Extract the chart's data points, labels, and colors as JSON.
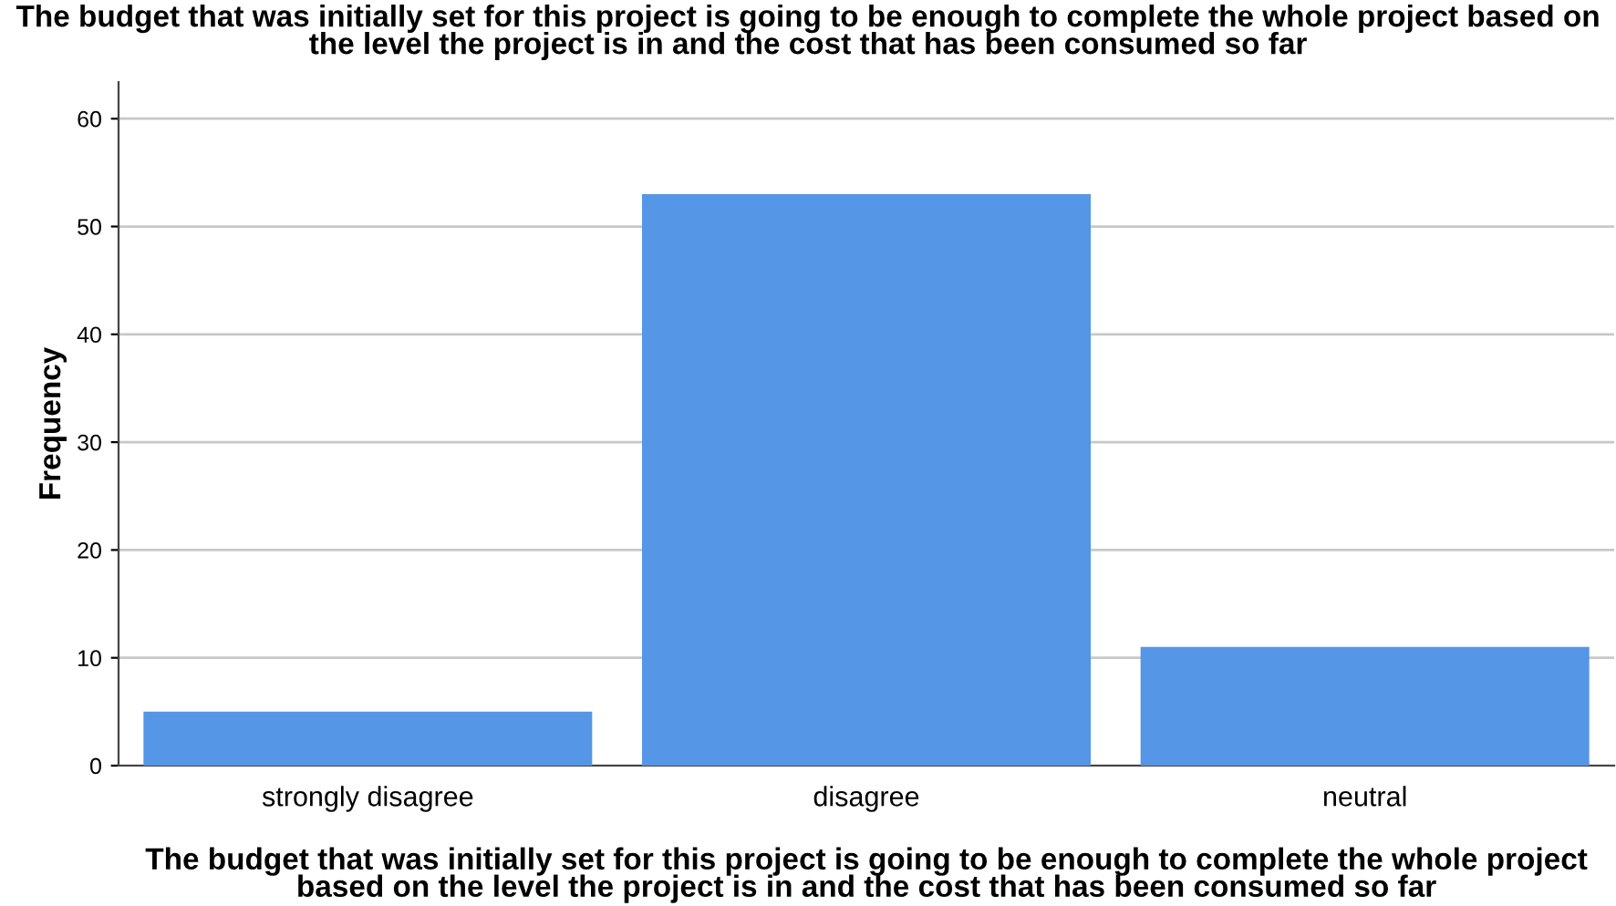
{
  "chart_data": {
    "type": "bar",
    "title": "The budget that was initially set for this project is going to be enough to complete the whole project based on\nthe level the project is in and the cost that has been consumed so far",
    "xlabel": "The budget that was initially set for this project is going to be enough to complete the whole project\nbased on the level the project is in and the cost that has been consumed so far",
    "ylabel": "Frequency",
    "categories": [
      "strongly disagree",
      "disagree",
      "neutral"
    ],
    "values": [
      5,
      53,
      11
    ],
    "color": "#5596e6",
    "ylim": [
      0,
      63.4
    ],
    "yticks": [
      0,
      10,
      20,
      30,
      40,
      50,
      60
    ],
    "grid": "y",
    "legend": false
  }
}
